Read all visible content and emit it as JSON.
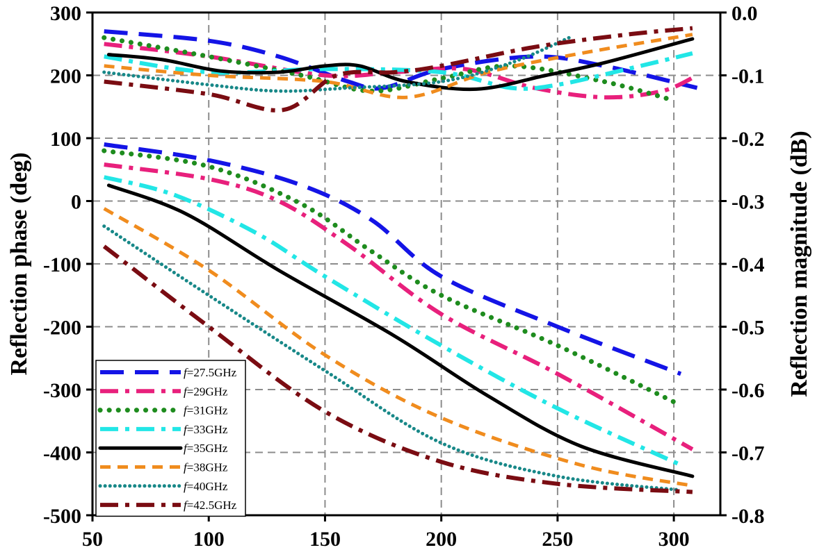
{
  "chart_data": {
    "type": "line",
    "xlabel": "",
    "ylabel": "Reflection phase (deg)",
    "y2label": "Reflection magnitude (dB)",
    "xlim": [
      50,
      320
    ],
    "ylim": [
      -500,
      300
    ],
    "y2lim": [
      -0.8,
      0.0
    ],
    "x_ticks": [
      50,
      100,
      150,
      200,
      250,
      300
    ],
    "y_ticks": [
      300,
      200,
      100,
      0,
      -100,
      -200,
      -300,
      -400,
      -500
    ],
    "y2_ticks": [
      "0.0",
      "-0.1",
      "-0.2",
      "-0.3",
      "-0.4",
      "-0.5",
      "-0.6",
      "-0.7",
      "-0.8"
    ],
    "grid": true,
    "legend_position": "bottom-left",
    "series": [
      {
        "name": "f=27.5GHz",
        "label_prefix": "f",
        "label_suffix": "=27.5GHz",
        "color": "#1414e6",
        "dash": "long-dash",
        "phase": [
          [
            55,
            90
          ],
          [
            100,
            65
          ],
          [
            140,
            25
          ],
          [
            170,
            -30
          ],
          [
            200,
            -120
          ],
          [
            250,
            -200
          ],
          [
            303,
            -275
          ]
        ],
        "magnitude": [
          [
            55,
            -0.03
          ],
          [
            100,
            -0.045
          ],
          [
            130,
            -0.07
          ],
          [
            160,
            -0.11
          ],
          [
            175,
            -0.12
          ],
          [
            200,
            -0.09
          ],
          [
            240,
            -0.07
          ],
          [
            270,
            -0.085
          ],
          [
            310,
            -0.12
          ]
        ]
      },
      {
        "name": "f=29GHz",
        "label_prefix": "f",
        "label_suffix": "=29GHz",
        "color": "#e8207c",
        "dash": "dash-dot",
        "phase": [
          [
            55,
            58
          ],
          [
            100,
            35
          ],
          [
            130,
            0
          ],
          [
            160,
            -70
          ],
          [
            200,
            -180
          ],
          [
            250,
            -275
          ],
          [
            308,
            -395
          ]
        ],
        "magnitude": [
          [
            55,
            -0.05
          ],
          [
            100,
            -0.07
          ],
          [
            150,
            -0.1
          ],
          [
            180,
            -0.095
          ],
          [
            210,
            -0.09
          ],
          [
            240,
            -0.12
          ],
          [
            270,
            -0.135
          ],
          [
            295,
            -0.125
          ],
          [
            310,
            -0.1
          ]
        ]
      },
      {
        "name": "f=31GHz",
        "label_prefix": "f",
        "label_suffix": "=31GHz",
        "color": "#1e8c1e",
        "dash": "dot",
        "phase": [
          [
            55,
            80
          ],
          [
            100,
            55
          ],
          [
            140,
            -5
          ],
          [
            170,
            -80
          ],
          [
            200,
            -150
          ],
          [
            250,
            -230
          ],
          [
            303,
            -325
          ]
        ],
        "magnitude": [
          [
            55,
            -0.04
          ],
          [
            100,
            -0.07
          ],
          [
            140,
            -0.1
          ],
          [
            170,
            -0.125
          ],
          [
            200,
            -0.105
          ],
          [
            230,
            -0.085
          ],
          [
            270,
            -0.11
          ],
          [
            300,
            -0.14
          ]
        ]
      },
      {
        "name": "f=33GHz",
        "label_prefix": "f",
        "label_suffix": "=33GHz",
        "color": "#22e6e6",
        "dash": "dash-dot",
        "phase": [
          [
            55,
            38
          ],
          [
            85,
            10
          ],
          [
            120,
            -50
          ],
          [
            150,
            -120
          ],
          [
            200,
            -230
          ],
          [
            250,
            -330
          ],
          [
            303,
            -420
          ]
        ],
        "magnitude": [
          [
            55,
            -0.07
          ],
          [
            100,
            -0.095
          ],
          [
            150,
            -0.09
          ],
          [
            200,
            -0.095
          ],
          [
            230,
            -0.12
          ],
          [
            250,
            -0.115
          ],
          [
            280,
            -0.09
          ],
          [
            308,
            -0.065
          ]
        ]
      },
      {
        "name": "f=35GHz",
        "label_prefix": "f",
        "label_suffix": "=35GHz",
        "color": "#000000",
        "dash": "solid",
        "phase": [
          [
            57,
            25
          ],
          [
            90,
            -20
          ],
          [
            130,
            -110
          ],
          [
            180,
            -215
          ],
          [
            220,
            -310
          ],
          [
            260,
            -390
          ],
          [
            308,
            -438
          ]
        ],
        "magnitude": [
          [
            57,
            -0.067
          ],
          [
            80,
            -0.075
          ],
          [
            105,
            -0.093
          ],
          [
            130,
            -0.095
          ],
          [
            150,
            -0.085
          ],
          [
            165,
            -0.085
          ],
          [
            185,
            -0.11
          ],
          [
            215,
            -0.122
          ],
          [
            245,
            -0.1
          ],
          [
            270,
            -0.08
          ],
          [
            308,
            -0.042
          ]
        ]
      },
      {
        "name": "f=38GHz",
        "label_prefix": "f",
        "label_suffix": "=38GHz",
        "color": "#f08c1e",
        "dash": "short-dash",
        "phase": [
          [
            55,
            -12
          ],
          [
            100,
            -110
          ],
          [
            150,
            -245
          ],
          [
            200,
            -345
          ],
          [
            260,
            -420
          ],
          [
            308,
            -453
          ]
        ],
        "magnitude": [
          [
            55,
            -0.085
          ],
          [
            100,
            -0.1
          ],
          [
            150,
            -0.11
          ],
          [
            185,
            -0.135
          ],
          [
            220,
            -0.095
          ],
          [
            260,
            -0.065
          ],
          [
            308,
            -0.035
          ]
        ]
      },
      {
        "name": "f=40GHz",
        "label_prefix": "f",
        "label_suffix": "=40GHz",
        "color": "#188888",
        "dash": "dense-dot",
        "phase": [
          [
            55,
            -40
          ],
          [
            100,
            -150
          ],
          [
            150,
            -270
          ],
          [
            200,
            -385
          ],
          [
            250,
            -438
          ],
          [
            303,
            -460
          ]
        ],
        "magnitude": [
          [
            55,
            -0.095
          ],
          [
            100,
            -0.115
          ],
          [
            130,
            -0.125
          ],
          [
            160,
            -0.12
          ],
          [
            200,
            -0.11
          ],
          [
            230,
            -0.08
          ],
          [
            255,
            -0.04
          ]
        ]
      },
      {
        "name": "f=42.5GHz",
        "label_prefix": "f",
        "label_suffix": "=42.5GHz",
        "color": "#7a0c12",
        "dash": "dash-dot",
        "phase": [
          [
            55,
            -72
          ],
          [
            100,
            -200
          ],
          [
            150,
            -335
          ],
          [
            200,
            -415
          ],
          [
            250,
            -450
          ],
          [
            308,
            -463
          ]
        ],
        "magnitude": [
          [
            55,
            -0.11
          ],
          [
            100,
            -0.13
          ],
          [
            132,
            -0.155
          ],
          [
            155,
            -0.1
          ],
          [
            180,
            -0.095
          ],
          [
            200,
            -0.085
          ],
          [
            240,
            -0.055
          ],
          [
            280,
            -0.035
          ],
          [
            308,
            -0.025
          ]
        ]
      }
    ]
  }
}
